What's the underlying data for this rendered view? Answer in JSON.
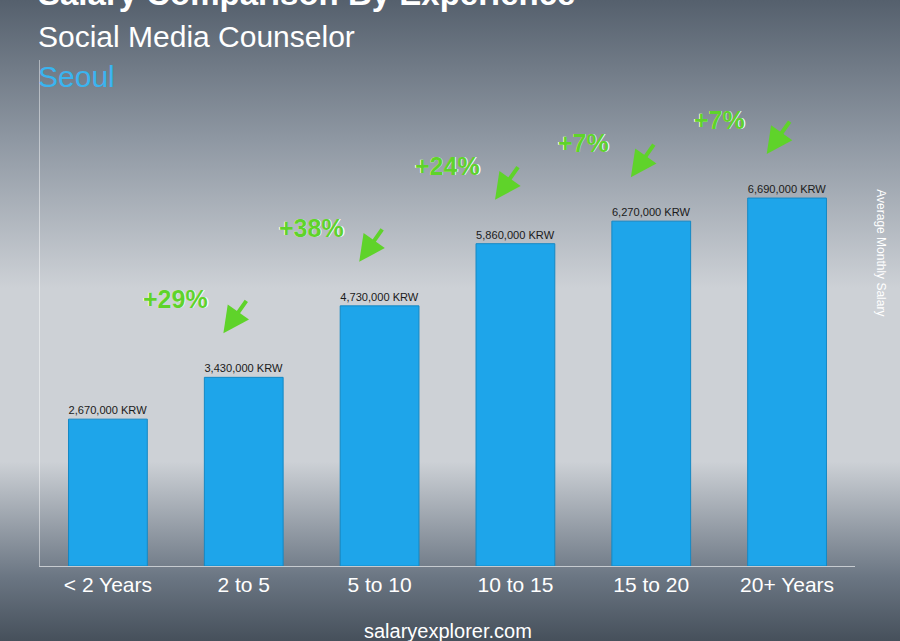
{
  "chart_data": {
    "type": "bar",
    "title": "Salary Comparison By Experience",
    "subtitle": "Social Media Counselor",
    "location": "Seoul",
    "categories": [
      "< 2 Years",
      "2 to 5",
      "5 to 10",
      "10 to 15",
      "15 to 20",
      "20+ Years"
    ],
    "values": [
      2670000,
      3430000,
      4730000,
      5860000,
      6270000,
      6690000
    ],
    "value_labels": [
      "2,670,000 KRW",
      "3,430,000 KRW",
      "4,730,000 KRW",
      "5,860,000 KRW",
      "6,270,000 KRW",
      "6,690,000 KRW"
    ],
    "data_labels": true,
    "color": "#1ea5ea",
    "ylim": [
      0,
      9200000
    ],
    "yticks": [],
    "tick_labels": "x",
    "grid": false,
    "y_label": "Average Monthly Salary",
    "changes": {
      "values": [
        29,
        38,
        24,
        7,
        7
      ],
      "value_labels": [
        "+29%",
        "+38%",
        "+24%",
        "+7%",
        "+7%"
      ]
    },
    "source": "salaryexplorer.com"
  }
}
